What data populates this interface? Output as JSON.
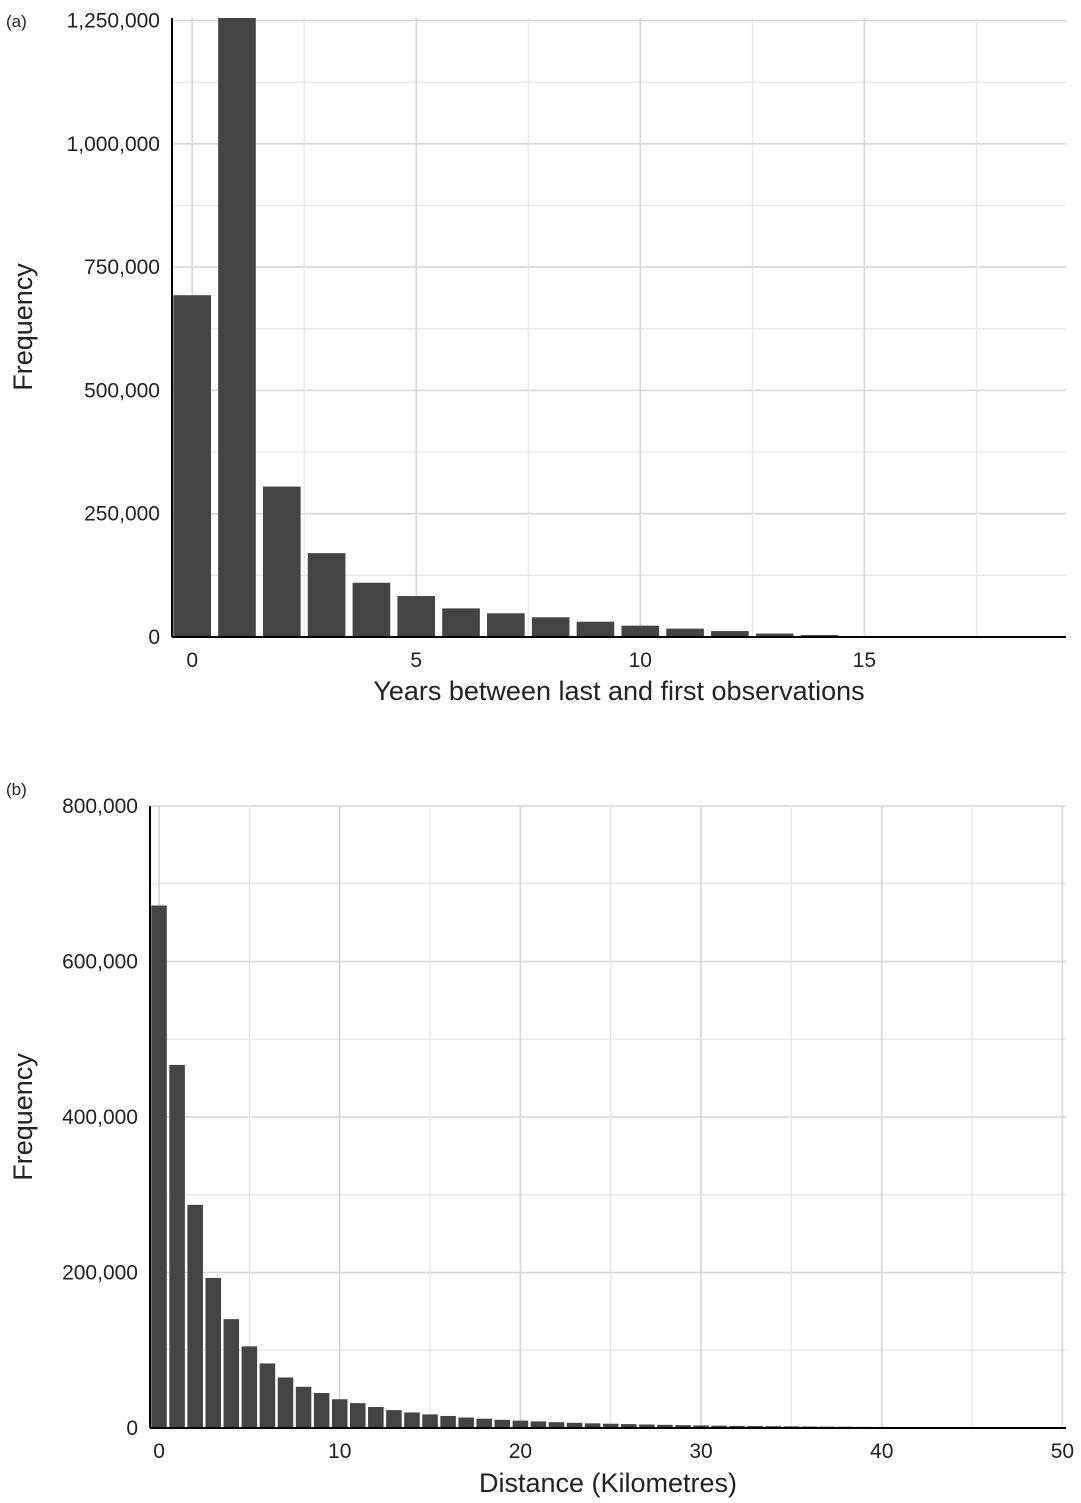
{
  "chart_data": [
    {
      "type": "bar",
      "panel_label": "(a)",
      "xlabel": "Years between last and first observations",
      "ylabel": "Frequency",
      "x": [
        0,
        1,
        2,
        3,
        4,
        5,
        6,
        7,
        8,
        9,
        10,
        11,
        12,
        13,
        14,
        15,
        16,
        17,
        18
      ],
      "values": [
        693000,
        1255000,
        305000,
        170000,
        110000,
        83000,
        58000,
        48000,
        40000,
        31000,
        23000,
        17000,
        12000,
        7000,
        4000,
        2000,
        1000,
        500,
        200
      ],
      "xlim": [
        -0.45,
        19.5
      ],
      "ylim": [
        0,
        1255000
      ],
      "xticks": [
        0,
        5,
        10,
        15
      ],
      "xtick_labels": [
        "0",
        "5",
        "10",
        "15"
      ],
      "yticks": [
        0,
        250000,
        500000,
        750000,
        1000000,
        1250000
      ],
      "ytick_labels": [
        "0",
        "250,000",
        "500,000",
        "750,000",
        "1,000,000",
        "1,250,000"
      ],
      "grid": true,
      "color": "#444444"
    },
    {
      "type": "bar",
      "panel_label": "(b)",
      "xlabel": "Distance (Kilometres)",
      "ylabel": "Frequency",
      "x": [
        0,
        1,
        2,
        3,
        4,
        5,
        6,
        7,
        8,
        9,
        10,
        11,
        12,
        13,
        14,
        15,
        16,
        17,
        18,
        19,
        20,
        21,
        22,
        23,
        24,
        25,
        26,
        27,
        28,
        29,
        30,
        31,
        32,
        33,
        34,
        35,
        36,
        37,
        38,
        39,
        40,
        41,
        42,
        43,
        44,
        45,
        46,
        47,
        48,
        49
      ],
      "values": [
        672000,
        467000,
        287000,
        193000,
        140000,
        105000,
        83000,
        65000,
        53000,
        45000,
        37000,
        32000,
        27000,
        23000,
        20000,
        17500,
        15500,
        13500,
        12000,
        10500,
        9500,
        8500,
        7500,
        6700,
        6000,
        5500,
        5000,
        4500,
        4100,
        3700,
        3300,
        3000,
        2700,
        2500,
        2300,
        2100,
        1900,
        1700,
        1600,
        1500,
        1400,
        1300,
        1200,
        1100,
        1000,
        900,
        800,
        700,
        650,
        600
      ],
      "xlim": [
        -0.5,
        50.2
      ],
      "ylim": [
        0,
        800000
      ],
      "xticks": [
        0,
        10,
        20,
        30,
        40,
        50
      ],
      "xtick_labels": [
        "0",
        "10",
        "20",
        "30",
        "40",
        "50"
      ],
      "yticks": [
        0,
        200000,
        400000,
        600000,
        800000
      ],
      "ytick_labels": [
        "0",
        "200,000",
        "400,000",
        "600,000",
        "800,000"
      ],
      "grid": true,
      "color": "#444444"
    }
  ]
}
